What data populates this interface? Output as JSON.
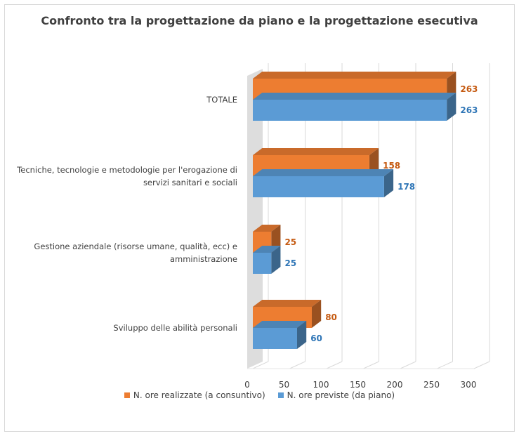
{
  "chart_data": {
    "type": "bar",
    "orientation": "horizontal",
    "title": "Confronto tra la progettazione da piano e la progettazione esecutiva",
    "categories": [
      "TOTALE",
      "Tecniche, tecnologie e metodologie per l'erogazione di servizi sanitari e sociali",
      "Gestione aziendale (risorse umane, qualità, ecc) e amministrazione",
      "Sviluppo delle abilità personali"
    ],
    "category_lines": [
      [
        "TOTALE"
      ],
      [
        "Tecniche, tecnologie e metodologie per l'erogazione di",
        "servizi sanitari e sociali"
      ],
      [
        "Gestione aziendale (risorse umane, qualità, ecc) e",
        "amministrazione"
      ],
      [
        "Sviluppo delle abilità personali"
      ]
    ],
    "series": [
      {
        "name": "N. ore realizzate (a consuntivo)",
        "values": [
          263,
          158,
          25,
          80
        ],
        "color": "#ed7d31",
        "label_color": "#c55a11"
      },
      {
        "name": "N. ore previste (da piano)",
        "values": [
          263,
          178,
          25,
          60
        ],
        "color": "#5b9bd5",
        "label_color": "#2e75b6"
      }
    ],
    "xlim": [
      0,
      300
    ],
    "xticks": [
      0,
      50,
      100,
      150,
      200,
      250,
      300
    ],
    "grid": true,
    "legend_position": "bottom",
    "style": "3d-clustered"
  }
}
